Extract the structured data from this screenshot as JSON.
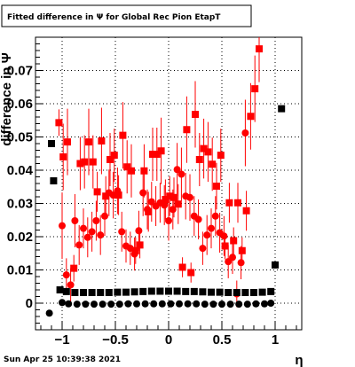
{
  "chart_data": {
    "type": "scatter",
    "title": "Fitted difference in  Ψ  for Global Rec Pion EtapT",
    "xlabel": "η",
    "ylabel": "difference in  Ψ",
    "footer_date": "Sun Apr 25 10:39:38 2021",
    "xlim": [
      -1.25,
      1.25
    ],
    "ylim": [
      -0.008,
      0.08
    ],
    "grid": true,
    "x_ticks": [
      -1,
      -0.5,
      0,
      0.5,
      1
    ],
    "x_tick_labels": [
      "−1",
      "−0.5",
      "0",
      "0.5",
      "1"
    ],
    "y_ticks": [
      0,
      0.01,
      0.02,
      0.03,
      0.04,
      0.05,
      0.06,
      0.07
    ],
    "y_tick_labels": [
      "0",
      "0.01",
      "0.02",
      "0.03",
      "0.04",
      "0.05",
      "0.06",
      "0.07"
    ],
    "colors": {
      "red": "#ff0000",
      "black": "#000000"
    },
    "series": [
      {
        "marker": "square",
        "color": "#ff0000",
        "points": [
          [
            -1.03,
            0.0543,
            0.004
          ],
          [
            -0.99,
            0.044,
            0.01
          ],
          [
            -0.95,
            0.0485,
            0.01
          ],
          [
            -0.89,
            0.0105,
            0.004
          ],
          [
            -0.83,
            0.042,
            0.008
          ],
          [
            -0.79,
            0.0425,
            0.008
          ],
          [
            -0.75,
            0.0485,
            0.01
          ],
          [
            -0.71,
            0.0425,
            0.008
          ],
          [
            -0.67,
            0.0335,
            0.006
          ],
          [
            -0.63,
            0.0488,
            0.01
          ],
          [
            -0.59,
            0.0322,
            0.006
          ],
          [
            -0.55,
            0.0432,
            0.008
          ],
          [
            -0.51,
            0.0445,
            0.008
          ],
          [
            -0.47,
            0.0325,
            0.006
          ],
          [
            -0.43,
            0.0505,
            0.01
          ],
          [
            -0.39,
            0.041,
            0.008
          ],
          [
            -0.35,
            0.0398,
            0.008
          ],
          [
            -0.31,
            0.0158,
            0.004
          ],
          [
            -0.27,
            0.0175,
            0.004
          ],
          [
            -0.23,
            0.0398,
            0.008
          ],
          [
            -0.19,
            0.0275,
            0.006
          ],
          [
            -0.15,
            0.0448,
            0.008
          ],
          [
            -0.11,
            0.0448,
            0.008
          ],
          [
            -0.07,
            0.0458,
            0.01
          ],
          [
            -0.03,
            0.0312,
            0.006
          ],
          [
            0.01,
            0.0322,
            0.006
          ],
          [
            0.05,
            0.0318,
            0.006
          ],
          [
            0.09,
            0.0298,
            0.006
          ],
          [
            0.13,
            0.0108,
            0.003
          ],
          [
            0.17,
            0.0522,
            0.01
          ],
          [
            0.21,
            0.0092,
            0.003
          ],
          [
            0.25,
            0.0568,
            0.01
          ],
          [
            0.29,
            0.0432,
            0.008
          ],
          [
            0.33,
            0.0465,
            0.009
          ],
          [
            0.37,
            0.0455,
            0.009
          ],
          [
            0.41,
            0.0418,
            0.008
          ],
          [
            0.45,
            0.0352,
            0.007
          ],
          [
            0.49,
            0.0445,
            0.008
          ],
          [
            0.53,
            0.0172,
            0.004
          ],
          [
            0.57,
            0.0302,
            0.006
          ],
          [
            0.61,
            0.0188,
            0.004
          ],
          [
            0.65,
            0.0302,
            0.006
          ],
          [
            0.69,
            0.0158,
            0.004
          ],
          [
            0.73,
            0.0278,
            0.006
          ],
          [
            0.77,
            0.0562,
            0.01
          ],
          [
            0.81,
            0.0645,
            0.01
          ],
          [
            0.85,
            0.0765,
            0.01
          ]
        ]
      },
      {
        "marker": "circle",
        "color": "#ff0000",
        "points": [
          [
            -1.0,
            0.0233,
            0.01
          ],
          [
            -0.96,
            0.0085,
            0.005
          ],
          [
            -0.92,
            0.0055,
            0.005
          ],
          [
            -0.88,
            0.0248,
            0.008
          ],
          [
            -0.84,
            0.0175,
            0.006
          ],
          [
            -0.8,
            0.0225,
            0.006
          ],
          [
            -0.76,
            0.0198,
            0.006
          ],
          [
            -0.72,
            0.0215,
            0.006
          ],
          [
            -0.68,
            0.0248,
            0.006
          ],
          [
            -0.64,
            0.0205,
            0.006
          ],
          [
            -0.6,
            0.0262,
            0.006
          ],
          [
            -0.56,
            0.0332,
            0.007
          ],
          [
            -0.52,
            0.0325,
            0.007
          ],
          [
            -0.48,
            0.0338,
            0.007
          ],
          [
            -0.44,
            0.0215,
            0.006
          ],
          [
            -0.4,
            0.0172,
            0.005
          ],
          [
            -0.36,
            0.0165,
            0.005
          ],
          [
            -0.32,
            0.0148,
            0.005
          ],
          [
            -0.28,
            0.0218,
            0.006
          ],
          [
            -0.24,
            0.0332,
            0.007
          ],
          [
            -0.2,
            0.0282,
            0.006
          ],
          [
            -0.16,
            0.0305,
            0.006
          ],
          [
            -0.12,
            0.0292,
            0.006
          ],
          [
            -0.08,
            0.0302,
            0.006
          ],
          [
            -0.04,
            0.0295,
            0.006
          ],
          [
            0.0,
            0.0248,
            0.006
          ],
          [
            0.04,
            0.0282,
            0.006
          ],
          [
            0.08,
            0.0402,
            0.008
          ],
          [
            0.12,
            0.0388,
            0.008
          ],
          [
            0.16,
            0.0322,
            0.007
          ],
          [
            0.2,
            0.0318,
            0.007
          ],
          [
            0.24,
            0.0262,
            0.006
          ],
          [
            0.28,
            0.0252,
            0.006
          ],
          [
            0.32,
            0.0165,
            0.005
          ],
          [
            0.36,
            0.0205,
            0.006
          ],
          [
            0.4,
            0.0225,
            0.006
          ],
          [
            0.44,
            0.0262,
            0.006
          ],
          [
            0.48,
            0.0212,
            0.006
          ],
          [
            0.52,
            0.0202,
            0.006
          ],
          [
            0.56,
            0.0125,
            0.005
          ],
          [
            0.6,
            0.0138,
            0.005
          ],
          [
            0.64,
            0.0028,
            0.004
          ],
          [
            0.68,
            0.0122,
            0.005
          ],
          [
            0.72,
            0.0512,
            0.01
          ]
        ]
      },
      {
        "marker": "square",
        "color": "#000000",
        "points": [
          [
            -1.1,
            0.048,
            0.0
          ],
          [
            -1.08,
            0.0368,
            0.0
          ],
          [
            -1.02,
            0.004,
            0.0
          ],
          [
            -0.96,
            0.0035,
            0.0
          ],
          [
            -0.88,
            0.0032,
            0.0
          ],
          [
            -0.8,
            0.0032,
            0.0
          ],
          [
            -0.72,
            0.0032,
            0.0
          ],
          [
            -0.64,
            0.0032,
            0.0
          ],
          [
            -0.56,
            0.0032,
            0.0
          ],
          [
            -0.48,
            0.0033,
            0.0
          ],
          [
            -0.4,
            0.0033,
            0.0
          ],
          [
            -0.32,
            0.0034,
            0.0
          ],
          [
            -0.24,
            0.0035,
            0.0
          ],
          [
            -0.16,
            0.0036,
            0.0
          ],
          [
            -0.08,
            0.0036,
            0.0
          ],
          [
            0.0,
            0.0036,
            0.0
          ],
          [
            0.08,
            0.0036,
            0.0
          ],
          [
            0.16,
            0.0035,
            0.0
          ],
          [
            0.24,
            0.0035,
            0.0
          ],
          [
            0.32,
            0.0034,
            0.0
          ],
          [
            0.4,
            0.0033,
            0.0
          ],
          [
            0.48,
            0.0033,
            0.0
          ],
          [
            0.56,
            0.0032,
            0.0
          ],
          [
            0.64,
            0.0032,
            0.0
          ],
          [
            0.72,
            0.0032,
            0.0
          ],
          [
            0.8,
            0.0032,
            0.0
          ],
          [
            0.88,
            0.0033,
            0.0
          ],
          [
            0.96,
            0.0035,
            0.0
          ],
          [
            1.0,
            0.0115,
            0.0
          ],
          [
            1.06,
            0.0585,
            0.0
          ]
        ]
      },
      {
        "marker": "circle",
        "color": "#000000",
        "points": [
          [
            -1.12,
            -0.003,
            0.0
          ],
          [
            -1.0,
            0.0002,
            0.0
          ],
          [
            -0.94,
            -0.0002,
            0.0
          ],
          [
            -0.86,
            -0.0003,
            0.0
          ],
          [
            -0.78,
            -0.0003,
            0.0
          ],
          [
            -0.7,
            -0.0003,
            0.0
          ],
          [
            -0.62,
            -0.0003,
            0.0
          ],
          [
            -0.54,
            -0.0003,
            0.0
          ],
          [
            -0.46,
            -0.0003,
            0.0
          ],
          [
            -0.38,
            -0.0002,
            0.0
          ],
          [
            -0.3,
            -0.0002,
            0.0
          ],
          [
            -0.22,
            -0.0002,
            0.0
          ],
          [
            -0.14,
            -0.0002,
            0.0
          ],
          [
            -0.06,
            -0.0002,
            0.0
          ],
          [
            0.02,
            -0.0002,
            0.0
          ],
          [
            0.1,
            -0.0002,
            0.0
          ],
          [
            0.18,
            -0.0002,
            0.0
          ],
          [
            0.26,
            -0.0002,
            0.0
          ],
          [
            0.34,
            -0.0003,
            0.0
          ],
          [
            0.42,
            -0.0003,
            0.0
          ],
          [
            0.5,
            -0.0003,
            0.0
          ],
          [
            0.58,
            -0.0003,
            0.0
          ],
          [
            0.66,
            -0.0003,
            0.0
          ],
          [
            0.74,
            -0.0003,
            0.0
          ],
          [
            0.82,
            -0.0002,
            0.0
          ],
          [
            0.9,
            -0.0002,
            0.0
          ],
          [
            0.96,
            0.0,
            0.0
          ]
        ]
      }
    ]
  }
}
